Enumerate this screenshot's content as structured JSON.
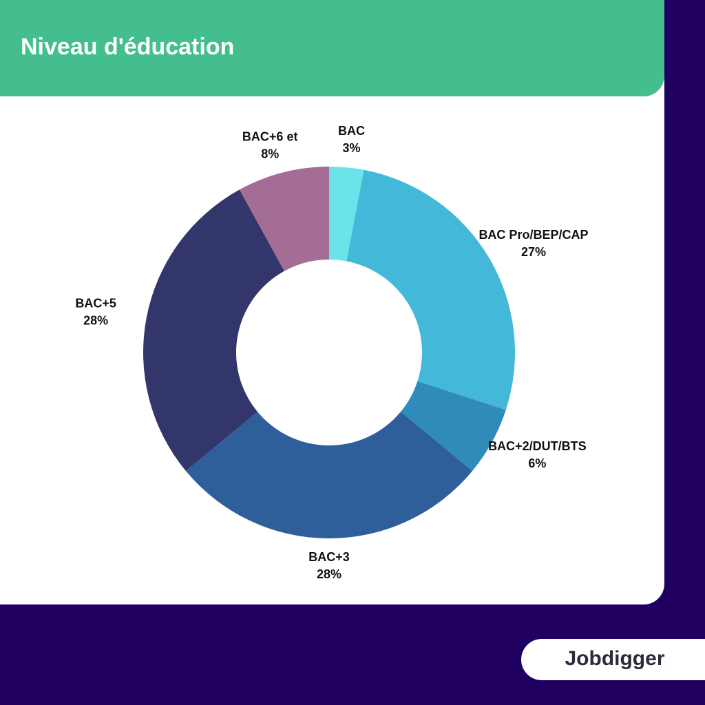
{
  "chart_data": {
    "type": "donut",
    "title": "Niveau d'éducation",
    "categories": [
      "BAC",
      "BAC Pro/BEP/CAP",
      "BAC+2/DUT/BTS",
      "BAC+3",
      "BAC+5",
      "BAC+6 et"
    ],
    "values": [
      3,
      27,
      6,
      28,
      28,
      8
    ],
    "value_labels": [
      "3%",
      "27%",
      "6%",
      "28%",
      "28%",
      "8%"
    ],
    "colors": [
      "#6ce3e8",
      "#44b8d8",
      "#2e8bba",
      "#2f5f9a",
      "#32366b",
      "#a36d96"
    ]
  },
  "logo": "Jobdigger"
}
